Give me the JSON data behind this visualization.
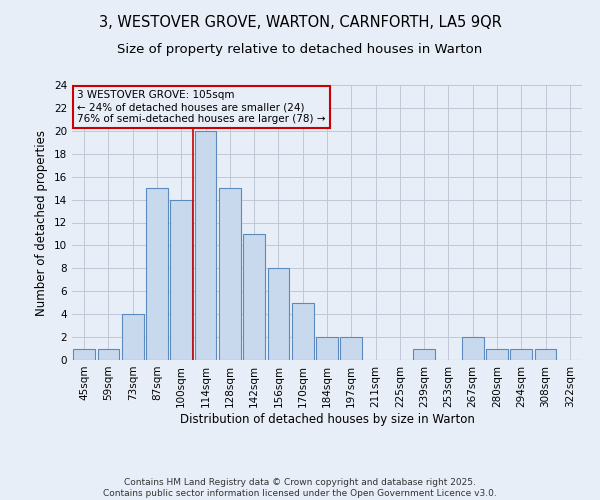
{
  "title1": "3, WESTOVER GROVE, WARTON, CARNFORTH, LA5 9QR",
  "title2": "Size of property relative to detached houses in Warton",
  "xlabel": "Distribution of detached houses by size in Warton",
  "ylabel": "Number of detached properties",
  "categories": [
    "45sqm",
    "59sqm",
    "73sqm",
    "87sqm",
    "100sqm",
    "114sqm",
    "128sqm",
    "142sqm",
    "156sqm",
    "170sqm",
    "184sqm",
    "197sqm",
    "211sqm",
    "225sqm",
    "239sqm",
    "253sqm",
    "267sqm",
    "280sqm",
    "294sqm",
    "308sqm",
    "322sqm"
  ],
  "values": [
    1,
    1,
    4,
    15,
    14,
    20,
    15,
    11,
    8,
    5,
    2,
    2,
    0,
    0,
    1,
    0,
    2,
    1,
    1,
    1,
    0
  ],
  "bar_color": "#c9d9ed",
  "bar_edge_color": "#5b8abf",
  "grid_color": "#c0c8d8",
  "background_color": "#e8eef8",
  "annotation_line1": "3 WESTOVER GROVE: 105sqm",
  "annotation_line2": "← 24% of detached houses are smaller (24)",
  "annotation_line3": "76% of semi-detached houses are larger (78) →",
  "annotation_box_color": "#cc0000",
  "vline_x_index": 4.5,
  "vline_color": "#cc0000",
  "ylim": [
    0,
    24
  ],
  "yticks": [
    0,
    2,
    4,
    6,
    8,
    10,
    12,
    14,
    16,
    18,
    20,
    22,
    24
  ],
  "footer": "Contains HM Land Registry data © Crown copyright and database right 2025.\nContains public sector information licensed under the Open Government Licence v3.0.",
  "title_fontsize": 10.5,
  "subtitle_fontsize": 9.5,
  "tick_fontsize": 7.5,
  "ylabel_fontsize": 8.5,
  "xlabel_fontsize": 8.5,
  "annotation_fontsize": 7.5,
  "footer_fontsize": 6.5
}
